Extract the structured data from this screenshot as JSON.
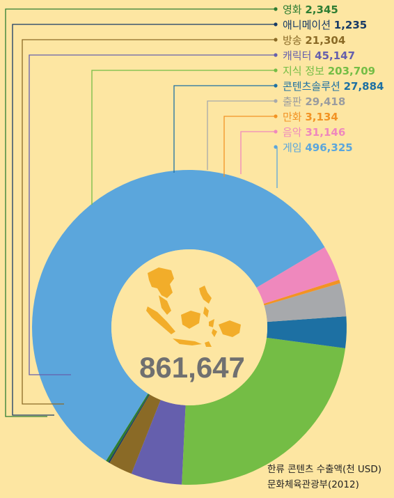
{
  "chart_data": {
    "type": "pie",
    "title": "한류 콘텐츠 수출액(천 USD)",
    "source": "문화체육관광부(2012)",
    "total": "861,647",
    "slices": [
      {
        "label": "영화",
        "value": 2345,
        "value_text": "2,345",
        "color": "#2e7d32"
      },
      {
        "label": "애니메이션",
        "value": 1235,
        "value_text": "1,235",
        "color": "#173a66"
      },
      {
        "label": "방송",
        "value": 21304,
        "value_text": "21,304",
        "color": "#8a6a26"
      },
      {
        "label": "캐릭터",
        "value": 45147,
        "value_text": "45,147",
        "color": "#655fad"
      },
      {
        "label": "지식 정보",
        "value": 203709,
        "value_text": "203,709",
        "color": "#74bd45"
      },
      {
        "label": "콘텐츠솔루션",
        "value": 27884,
        "value_text": "27,884",
        "color": "#1d70a3"
      },
      {
        "label": "출판",
        "value": 29418,
        "value_text": "29,418",
        "color": "#a7a9ac"
      },
      {
        "label": "만화",
        "value": 3134,
        "value_text": "3,134",
        "color": "#f29324"
      },
      {
        "label": "음악",
        "value": 31146,
        "value_text": "31,146",
        "color": "#ef88bd"
      },
      {
        "label": "게임",
        "value": 496325,
        "value_text": "496,325",
        "color": "#5ba6dc"
      }
    ]
  },
  "colors": {
    "background": "#fde6a2",
    "center_fill": "#fde6a2",
    "map_fill": "#f2ad2a"
  },
  "icon": "southeast-asia-map-icon"
}
